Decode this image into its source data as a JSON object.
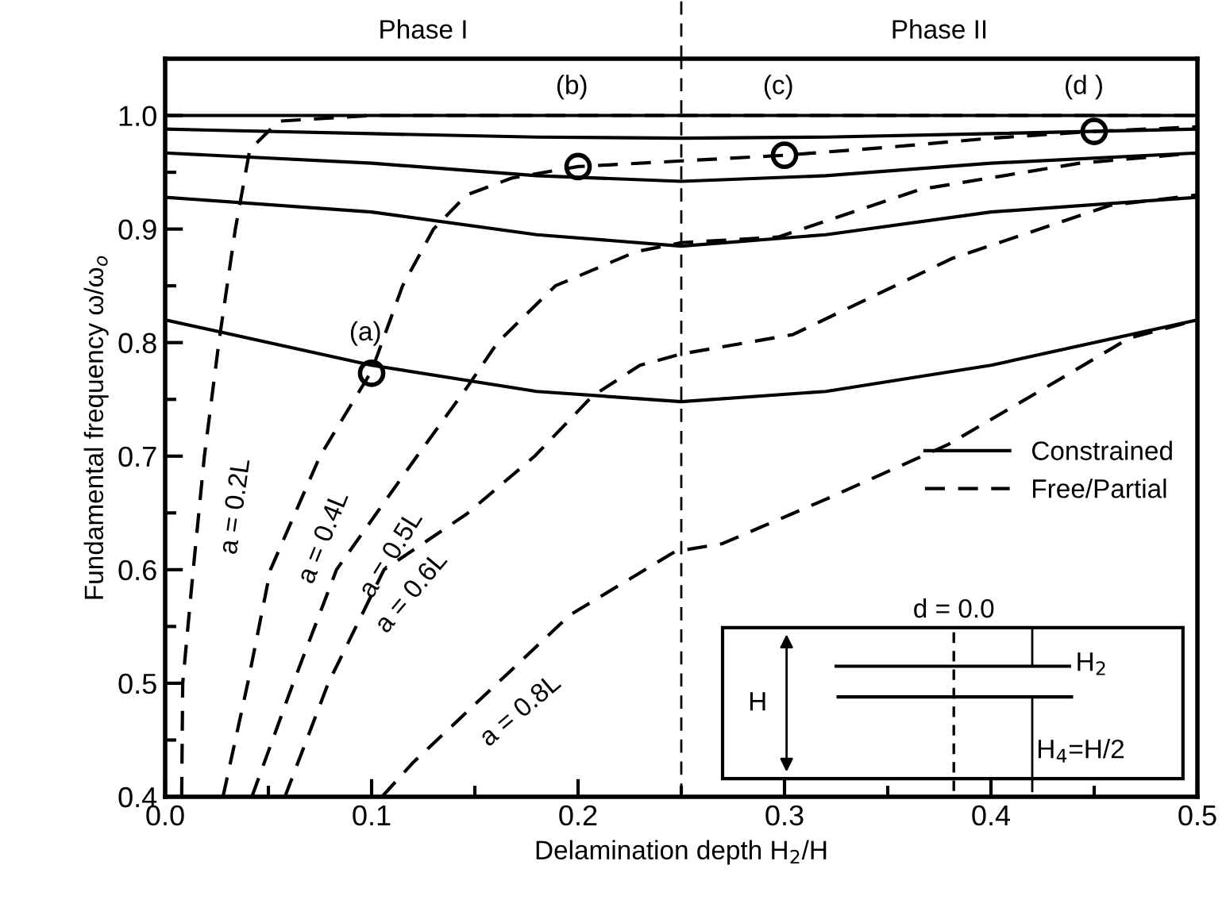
{
  "chart_data": {
    "type": "line",
    "xlabel": "Delamination depth H$_{2}$/H",
    "ylabel": "Fundamental frequency ω/ω$_{o}$",
    "xlim": [
      0.0,
      0.5
    ],
    "ylim": [
      0.4,
      1.05
    ],
    "xticks": [
      {
        "value": 0.0,
        "label": "0.0"
      },
      0.1,
      0.2,
      0.3,
      0.4,
      0.5
    ],
    "yticks": [
      0.4,
      0.5,
      0.6,
      0.7,
      0.8,
      0.9,
      {
        "value": 1.0,
        "label": "1.0"
      }
    ],
    "grid": false,
    "legend": "right",
    "marker": "none",
    "series": [
      {
        "name": "Constrained",
        "color": "#000000",
        "line_style": "solid",
        "x": [
          0.0,
          0.25,
          0.5
        ],
        "values": [
          1.0,
          1.0,
          1.0
        ]
      },
      {
        "color": "#000000",
        "line_style": "solid",
        "x": [
          0.0,
          0.1,
          0.18,
          0.25,
          0.32,
          0.4,
          0.5
        ],
        "values": [
          0.988,
          0.984,
          0.981,
          0.98,
          0.981,
          0.984,
          0.988
        ]
      },
      {
        "color": "#000000",
        "line_style": "solid",
        "x": [
          0.0,
          0.1,
          0.18,
          0.25,
          0.32,
          0.4,
          0.5
        ],
        "values": [
          0.967,
          0.958,
          0.947,
          0.942,
          0.947,
          0.958,
          0.967
        ]
      },
      {
        "color": "#000000",
        "line_style": "solid",
        "x": [
          0.0,
          0.1,
          0.18,
          0.25,
          0.32,
          0.4,
          0.5
        ],
        "values": [
          0.928,
          0.915,
          0.895,
          0.885,
          0.895,
          0.915,
          0.928
        ]
      },
      {
        "color": "#000000",
        "line_style": "solid",
        "x": [
          0.0,
          0.1,
          0.18,
          0.25,
          0.32,
          0.4,
          0.5
        ],
        "values": [
          0.82,
          0.78,
          0.757,
          0.748,
          0.757,
          0.78,
          0.82
        ]
      },
      {
        "name": "Free/Partial",
        "color": "#000000",
        "line_style": "dashed",
        "x": [
          0.008,
          0.0085,
          0.0136,
          0.019,
          0.026,
          0.034,
          0.041,
          0.055,
          0.1,
          0.5
        ],
        "values": [
          0.4,
          0.5,
          0.6,
          0.7,
          0.8,
          0.9,
          0.97,
          0.995,
          1.0,
          1.0
        ]
      },
      {
        "color": "#000000",
        "line_style": "dashed",
        "x": [
          0.028,
          0.04,
          0.051,
          0.075,
          0.1,
          0.115,
          0.13,
          0.146,
          0.168,
          0.2,
          0.25,
          0.3,
          0.35,
          0.4,
          0.45,
          0.5
        ],
        "values": [
          0.4,
          0.5,
          0.6,
          0.7,
          0.775,
          0.85,
          0.9,
          0.93,
          0.945,
          0.955,
          0.96,
          0.965,
          0.972,
          0.98,
          0.986,
          0.99
        ]
      },
      {
        "color": "#000000",
        "line_style": "dashed",
        "x": [
          0.042,
          0.062,
          0.083,
          0.122,
          0.146,
          0.161,
          0.189,
          0.228,
          0.25,
          0.297,
          0.366,
          0.443,
          0.5
        ],
        "values": [
          0.4,
          0.5,
          0.6,
          0.7,
          0.76,
          0.8,
          0.85,
          0.88,
          0.888,
          0.893,
          0.935,
          0.958,
          0.967
        ]
      },
      {
        "color": "#000000",
        "line_style": "dashed",
        "x": [
          0.058,
          0.079,
          0.106,
          0.146,
          0.179,
          0.207,
          0.23,
          0.25,
          0.304,
          0.381,
          0.458,
          0.5
        ],
        "values": [
          0.4,
          0.5,
          0.6,
          0.649,
          0.7,
          0.753,
          0.78,
          0.79,
          0.807,
          0.874,
          0.921,
          0.93
        ]
      },
      {
        "color": "#000000",
        "line_style": "dashed",
        "x": [
          0.105,
          0.12,
          0.158,
          0.196,
          0.247,
          0.27,
          0.32,
          0.379,
          0.428,
          0.467,
          0.5
        ],
        "values": [
          0.4,
          0.43,
          0.495,
          0.56,
          0.616,
          0.623,
          0.662,
          0.71,
          0.762,
          0.804,
          0.82
        ]
      },
      {
        "type": "scatter",
        "marker": "circle",
        "color": "#000000",
        "x": [
          0.1,
          0.2,
          0.3,
          0.45
        ],
        "values": [
          0.773,
          0.955,
          0.965,
          0.986
        ]
      }
    ],
    "ref_lines": [
      {
        "axis": "x",
        "value": 0.25,
        "color": "#000000",
        "line_style": "dashed"
      }
    ],
    "annotations": [
      "Phase I",
      "Phase II",
      "(a)",
      "(b)",
      "(c)",
      "(d )",
      "d = 0.0",
      "H",
      "H$_{2}$",
      "H$_{4}$=H/2",
      "a = 0.2L",
      "a = 0.4L",
      "a = 0.5L",
      "a = 0.6L",
      "a = 0.8L"
    ]
  }
}
